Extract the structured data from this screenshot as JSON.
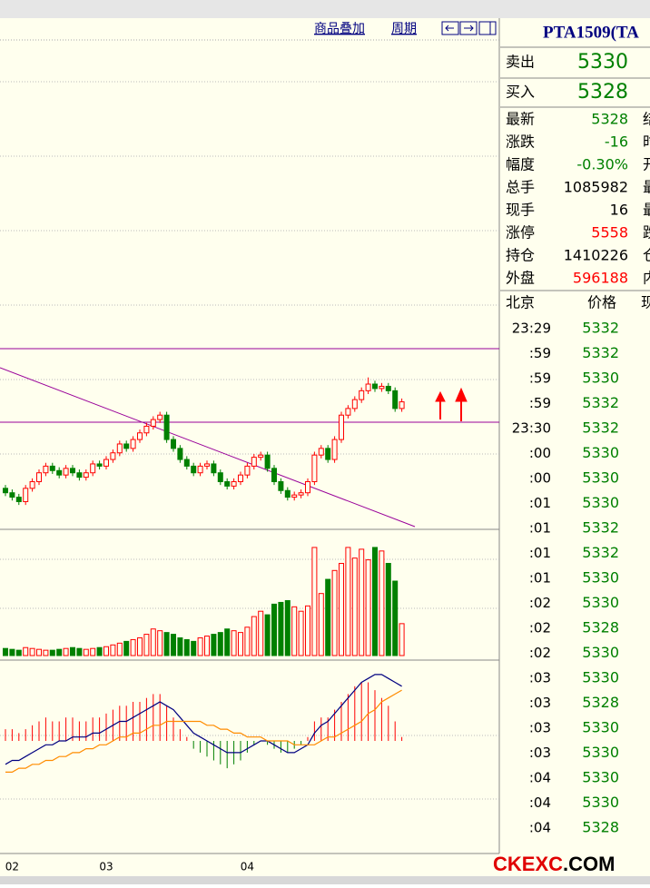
{
  "toolbar": {
    "overlay": "商品叠加",
    "period": "周期"
  },
  "quote": {
    "title": "PTA1509(TA",
    "ask": {
      "label": "卖出",
      "price": 5330
    },
    "bid": {
      "label": "买入",
      "price": 5328
    },
    "stats": [
      {
        "label": "最新",
        "value": 5328,
        "next": "结"
      },
      {
        "label": "涨跌",
        "value": -16,
        "next": "时"
      },
      {
        "label": "幅度",
        "value": "-0.30%",
        "next": "开"
      },
      {
        "label": "总手",
        "value": 1085982,
        "next": "最"
      },
      {
        "label": "现手",
        "value": 16,
        "next": "最"
      },
      {
        "label": "涨停",
        "value": 5558,
        "next": "跌"
      },
      {
        "label": "持仓",
        "value": 1410226,
        "next": "仓"
      },
      {
        "label": "外盘",
        "value": 596188,
        "next": "内"
      }
    ]
  },
  "ticks": {
    "headers": [
      "北京",
      "价格",
      "现"
    ],
    "rows": [
      [
        "23:29",
        5332
      ],
      [
        ":59",
        5332
      ],
      [
        ":59",
        5330
      ],
      [
        ":59",
        5332
      ],
      [
        "23:30",
        5332
      ],
      [
        ":00",
        5330
      ],
      [
        ":00",
        5330
      ],
      [
        ":01",
        5330
      ],
      [
        ":01",
        5332
      ],
      [
        ":01",
        5332
      ],
      [
        ":01",
        5330
      ],
      [
        ":02",
        5330
      ],
      [
        ":02",
        5328
      ],
      [
        ":02",
        5330
      ],
      [
        ":03",
        5330
      ],
      [
        ":03",
        5328
      ],
      [
        ":03",
        5330
      ],
      [
        ":03",
        5330
      ],
      [
        ":04",
        5330
      ],
      [
        ":04",
        5330
      ],
      [
        ":04",
        5328
      ]
    ]
  },
  "chart": {
    "ylim": [
      5219,
      5680
    ],
    "candles": {
      "open": [
        5256,
        5252,
        5248,
        5244,
        5256,
        5262,
        5270,
        5276,
        5272,
        5268,
        5274,
        5270,
        5266,
        5270,
        5278,
        5276,
        5282,
        5288,
        5296,
        5292,
        5300,
        5306,
        5312,
        5318,
        5322,
        5300,
        5292,
        5282,
        5276,
        5270,
        5276,
        5278,
        5270,
        5262,
        5258,
        5262,
        5268,
        5276,
        5284,
        5286,
        5274,
        5262,
        5254,
        5248,
        5250,
        5252,
        5262,
        5286,
        5292,
        5282,
        5300,
        5322,
        5328,
        5336,
        5344,
        5350,
        5346,
        5348,
        5344,
        5328
      ],
      "high": [
        5259,
        5255,
        5251,
        5259,
        5265,
        5273,
        5279,
        5279,
        5275,
        5277,
        5277,
        5273,
        5273,
        5281,
        5281,
        5285,
        5291,
        5299,
        5299,
        5303,
        5309,
        5315,
        5321,
        5325,
        5325,
        5303,
        5295,
        5285,
        5279,
        5279,
        5281,
        5281,
        5273,
        5265,
        5265,
        5271,
        5279,
        5287,
        5289,
        5289,
        5277,
        5265,
        5257,
        5253,
        5255,
        5265,
        5289,
        5295,
        5295,
        5303,
        5325,
        5331,
        5339,
        5347,
        5356,
        5353,
        5351,
        5351,
        5347,
        5337
      ],
      "low": [
        5249,
        5245,
        5241,
        5241,
        5253,
        5259,
        5267,
        5269,
        5265,
        5265,
        5267,
        5263,
        5263,
        5267,
        5273,
        5273,
        5279,
        5285,
        5289,
        5289,
        5297,
        5303,
        5309,
        5315,
        5297,
        5289,
        5279,
        5273,
        5267,
        5267,
        5273,
        5267,
        5259,
        5255,
        5255,
        5259,
        5265,
        5273,
        5281,
        5271,
        5259,
        5251,
        5245,
        5245,
        5247,
        5249,
        5259,
        5283,
        5279,
        5279,
        5297,
        5319,
        5325,
        5333,
        5341,
        5343,
        5343,
        5341,
        5325,
        5325
      ],
      "close": [
        5252,
        5248,
        5244,
        5256,
        5262,
        5270,
        5276,
        5272,
        5268,
        5274,
        5270,
        5266,
        5270,
        5278,
        5276,
        5282,
        5288,
        5296,
        5292,
        5300,
        5306,
        5312,
        5318,
        5322,
        5300,
        5292,
        5282,
        5276,
        5270,
        5276,
        5278,
        5270,
        5262,
        5258,
        5262,
        5268,
        5276,
        5284,
        5286,
        5274,
        5262,
        5254,
        5248,
        5250,
        5252,
        5262,
        5286,
        5292,
        5282,
        5300,
        5322,
        5328,
        5336,
        5344,
        5350,
        5346,
        5348,
        5344,
        5328,
        5334
      ]
    },
    "volume": {
      "ylim": [
        0,
        125000
      ],
      "values": [
        8000,
        7000,
        6000,
        9000,
        8000,
        7000,
        6000,
        6000,
        7000,
        8000,
        9000,
        8000,
        7000,
        8000,
        9000,
        10000,
        12000,
        14000,
        16000,
        18000,
        20000,
        24000,
        30000,
        28000,
        26000,
        24000,
        20000,
        18000,
        16000,
        20000,
        22000,
        24000,
        26000,
        30000,
        28000,
        26000,
        32000,
        44000,
        50000,
        46000,
        58000,
        60000,
        62000,
        55000,
        50000,
        56000,
        122000,
        70000,
        86000,
        96000,
        104000,
        122000,
        110000,
        120000,
        108000,
        122000,
        118000,
        104000,
        84000,
        36000
      ]
    },
    "macd": {
      "ylim": [
        -30,
        20
      ],
      "hist": [
        3,
        3,
        2,
        3,
        4,
        5,
        6,
        5,
        5,
        6,
        6,
        5,
        5,
        6,
        6,
        7,
        8,
        9,
        9,
        10,
        10,
        11,
        12,
        12,
        9,
        6,
        3,
        1,
        -2,
        -3,
        -4,
        -5,
        -6,
        -7,
        -6,
        -5,
        -3,
        -1,
        0,
        -1,
        -2,
        -3,
        -3,
        -2,
        -1,
        1,
        5,
        6,
        6,
        8,
        10,
        12,
        14,
        15,
        15,
        13,
        11,
        9,
        5,
        1
      ],
      "dif": [
        -6,
        -5,
        -5,
        -4,
        -3,
        -2,
        -1,
        -1,
        0,
        0,
        1,
        1,
        1,
        2,
        2,
        3,
        4,
        5,
        5,
        6,
        7,
        8,
        9,
        10,
        9,
        8,
        6,
        4,
        2,
        1,
        0,
        -1,
        -2,
        -3,
        -3,
        -3,
        -2,
        -1,
        0,
        0,
        -1,
        -2,
        -3,
        -3,
        -2,
        -1,
        2,
        4,
        5,
        7,
        9,
        11,
        13,
        15,
        16,
        17,
        17,
        16,
        15,
        14
      ],
      "dea": [
        -8,
        -8,
        -7,
        -7,
        -6,
        -6,
        -5,
        -5,
        -4,
        -4,
        -3,
        -3,
        -2,
        -2,
        -1,
        -1,
        0,
        1,
        1,
        2,
        2,
        3,
        4,
        4,
        5,
        5,
        5,
        5,
        5,
        5,
        4,
        4,
        3,
        3,
        2,
        2,
        1,
        1,
        1,
        0,
        0,
        0,
        0,
        -1,
        -1,
        -1,
        -1,
        0,
        1,
        1,
        2,
        3,
        4,
        5,
        7,
        8,
        10,
        11,
        12,
        13
      ]
    },
    "x_labels": [
      "02",
      "03",
      "04"
    ]
  },
  "watermark": {
    "brand": "CKEXC",
    "suffix": ".COM"
  }
}
